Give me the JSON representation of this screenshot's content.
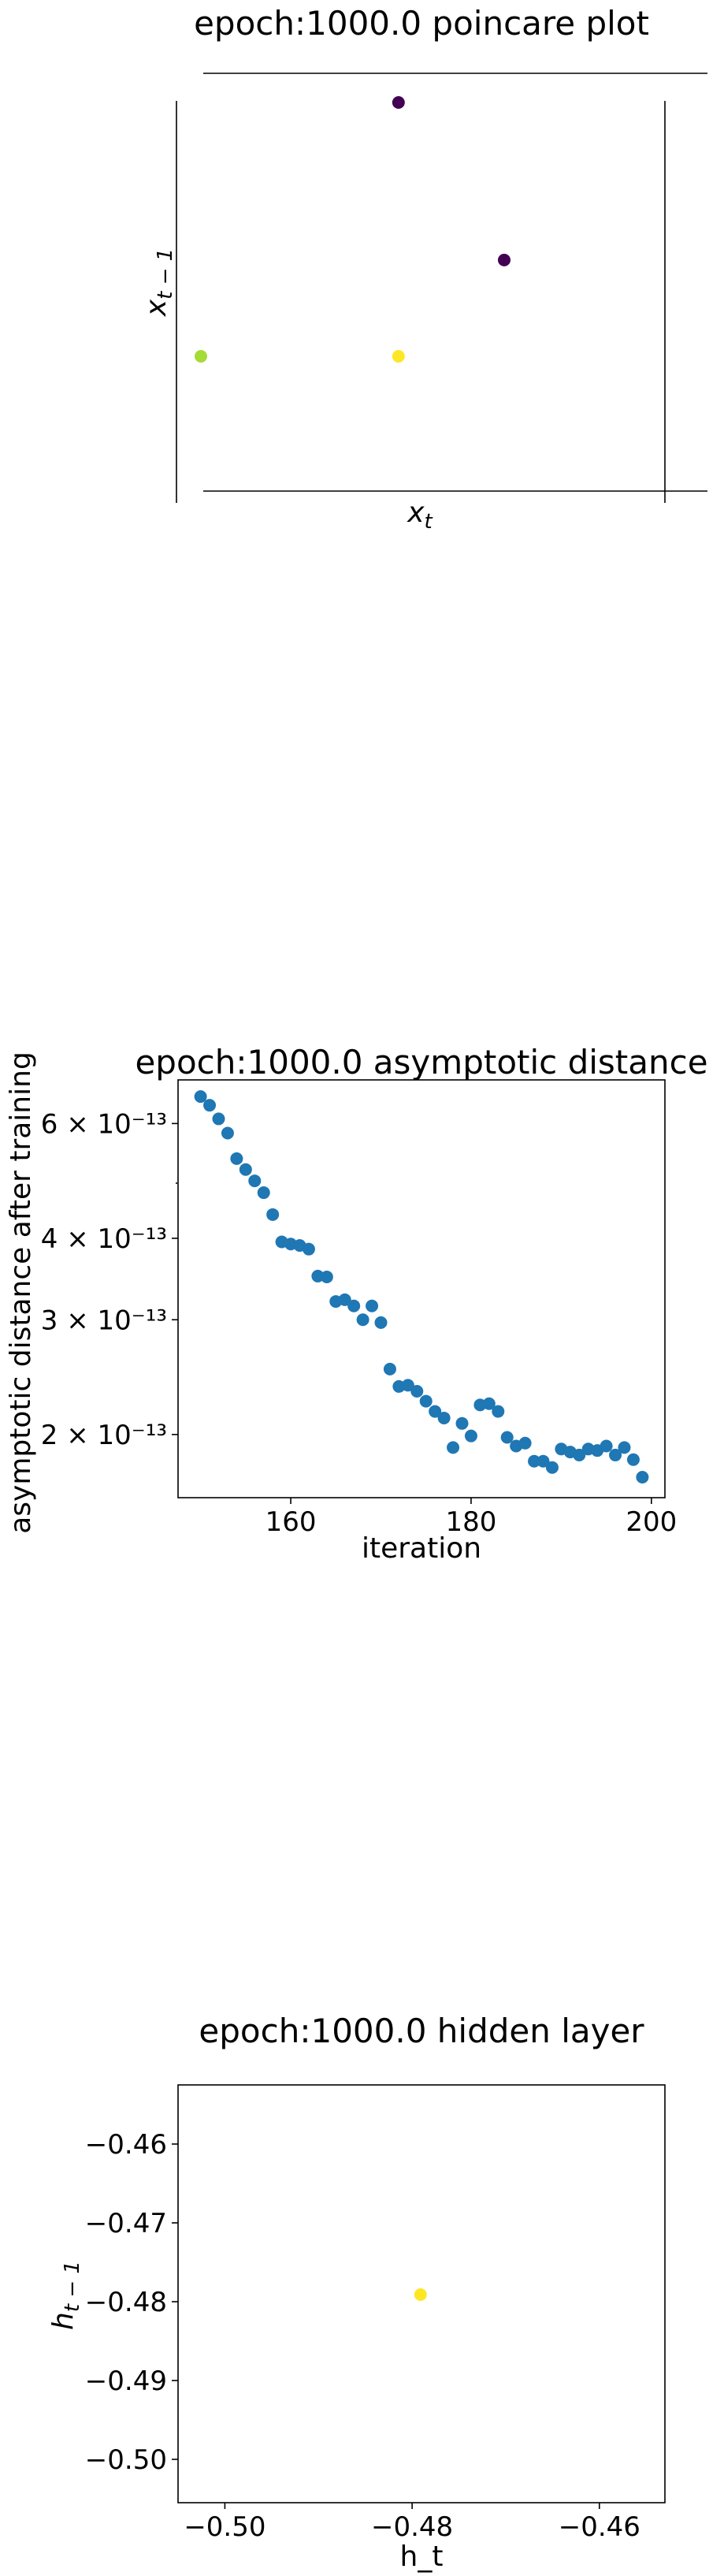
{
  "chart_data": [
    {
      "type": "scatter",
      "title": "epoch:1000.0 poincare plot",
      "xlabel": "x_t",
      "ylabel": "x_{t-1}",
      "axes_visible": false,
      "points": [
        {
          "x": 0.43,
          "y": 0.98,
          "color": "#440154"
        },
        {
          "x": 0.66,
          "y": 0.62,
          "color": "#440154"
        },
        {
          "x": 0.0,
          "y": 0.4,
          "color": "#a5db36"
        },
        {
          "x": 0.43,
          "y": 0.4,
          "color": "#fde725"
        }
      ]
    },
    {
      "type": "scatter",
      "title": "epoch:1000.0 asymptotic distance",
      "xlabel": "iteration",
      "ylabel": "asymptotic distance after training",
      "yscale": "log",
      "xlim": [
        147.5,
        201.5
      ],
      "ylim": [
        1.6e-13,
        7e-13
      ],
      "xticks": [
        "160",
        "180",
        "200"
      ],
      "yticks": [
        "6 × 10⁻¹³",
        "4 × 10⁻¹³",
        "3 × 10⁻¹³",
        "2 × 10⁻¹³"
      ],
      "color": "#1f77b4",
      "x": [
        150,
        151,
        152,
        153,
        154,
        155,
        156,
        157,
        158,
        159,
        160,
        161,
        162,
        163,
        164,
        165,
        166,
        167,
        168,
        169,
        170,
        171,
        172,
        173,
        174,
        175,
        176,
        177,
        178,
        179,
        180,
        181,
        182,
        183,
        184,
        185,
        186,
        187,
        188,
        189,
        190,
        191,
        192,
        193,
        194,
        195,
        196,
        197,
        198,
        199
      ],
      "y": [
        6.6e-13,
        6.4e-13,
        6.1e-13,
        5.8e-13,
        5.3e-13,
        5.1e-13,
        4.9e-13,
        4.7e-13,
        4.35e-13,
        3.95e-13,
        3.92e-13,
        3.9e-13,
        3.85e-13,
        3.5e-13,
        3.49e-13,
        3.2e-13,
        3.22e-13,
        3.15e-13,
        3e-13,
        3.15e-13,
        2.97e-13,
        2.52e-13,
        2.37e-13,
        2.38e-13,
        2.33e-13,
        2.25e-13,
        2.17e-13,
        2.12e-13,
        1.91e-13,
        2.08e-13,
        1.99e-13,
        2.22e-13,
        2.23e-13,
        2.17e-13,
        1.98e-13,
        1.92e-13,
        1.94e-13,
        1.82e-13,
        1.82e-13,
        1.78e-13,
        1.9e-13,
        1.88e-13,
        1.86e-13,
        1.9e-13,
        1.89e-13,
        1.92e-13,
        1.86e-13,
        1.91e-13,
        1.83e-13,
        1.72e-13
      ]
    },
    {
      "type": "scatter",
      "title": "epoch:1000.0 hidden layer",
      "xlabel": "h_t",
      "ylabel": "h_{t-1}",
      "xlim": [
        -0.505,
        -0.453
      ],
      "ylim": [
        -0.5055,
        -0.4525
      ],
      "xticks": [
        -0.5,
        -0.48,
        -0.46
      ],
      "xtick_labels": [
        "−0.50",
        "−0.48",
        "−0.46"
      ],
      "yticks": [
        -0.46,
        -0.47,
        -0.48,
        -0.49,
        -0.5
      ],
      "ytick_labels": [
        "−0.46",
        "−0.47",
        "−0.48",
        "−0.49",
        "−0.50"
      ],
      "points": [
        {
          "x": -0.4791,
          "y": -0.4791,
          "color": "#fde725"
        }
      ]
    }
  ]
}
